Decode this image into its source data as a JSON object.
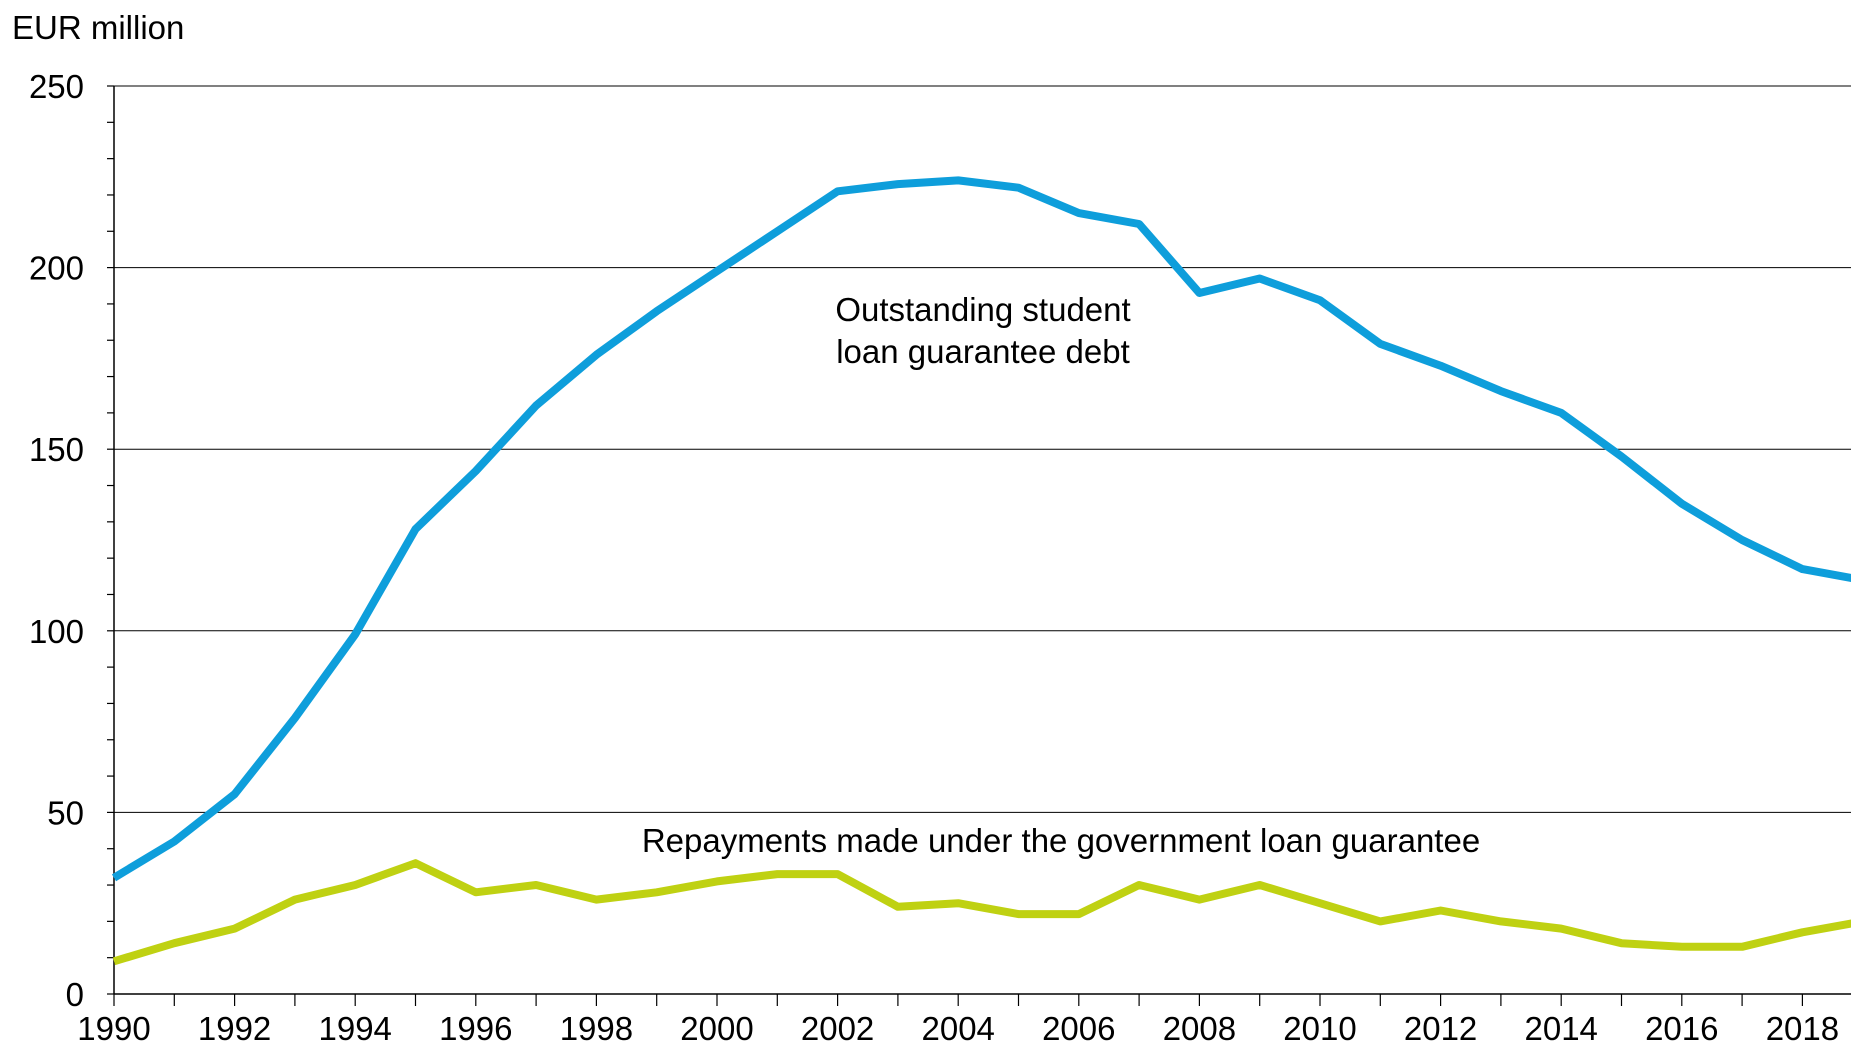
{
  "chart_data": {
    "type": "line",
    "ylabel": "EUR million",
    "xlim": [
      1990,
      2019
    ],
    "ylim": [
      0,
      250
    ],
    "y_ticks": [
      0,
      50,
      100,
      150,
      200,
      250
    ],
    "x_ticks": [
      1990,
      1992,
      1994,
      1996,
      1998,
      2000,
      2002,
      2004,
      2006,
      2008,
      2010,
      2012,
      2014,
      2016,
      2018
    ],
    "grid": true,
    "colors": {
      "outstanding": "#0E9EDB",
      "repayments": "#BFD112"
    },
    "annotations": {
      "outstanding_line1": "Outstanding student",
      "outstanding_line2": "loan guarantee debt",
      "repayments": "Repayments made under the government loan guarantee"
    },
    "series": [
      {
        "key": "outstanding",
        "label_annotation": "Outstanding student loan guarantee debt",
        "x": [
          1990,
          1991,
          1992,
          1993,
          1994,
          1995,
          1996,
          1997,
          1998,
          1999,
          2000,
          2001,
          2002,
          2003,
          2004,
          2005,
          2006,
          2007,
          2008,
          2009,
          2010,
          2011,
          2012,
          2013,
          2014,
          2015,
          2016,
          2017,
          2018,
          2019
        ],
        "values": [
          32,
          42,
          55,
          76,
          99,
          128,
          144,
          162,
          176,
          188,
          199,
          210,
          221,
          223,
          224,
          222,
          215,
          212,
          193,
          197,
          191,
          179,
          173,
          166,
          160,
          148,
          135,
          125,
          117,
          114
        ]
      },
      {
        "key": "repayments",
        "label_annotation": "Repayments made under the government loan guarantee",
        "x": [
          1990,
          1991,
          1992,
          1993,
          1994,
          1995,
          1996,
          1997,
          1998,
          1999,
          2000,
          2001,
          2002,
          2003,
          2004,
          2005,
          2006,
          2007,
          2008,
          2009,
          2010,
          2011,
          2012,
          2013,
          2014,
          2015,
          2016,
          2017,
          2018,
          2019
        ],
        "values": [
          9,
          14,
          18,
          26,
          30,
          36,
          28,
          30,
          26,
          28,
          31,
          33,
          33,
          24,
          25,
          22,
          22,
          30,
          26,
          30,
          25,
          20,
          23,
          20,
          18,
          14,
          13,
          13,
          17,
          20
        ]
      }
    ]
  }
}
